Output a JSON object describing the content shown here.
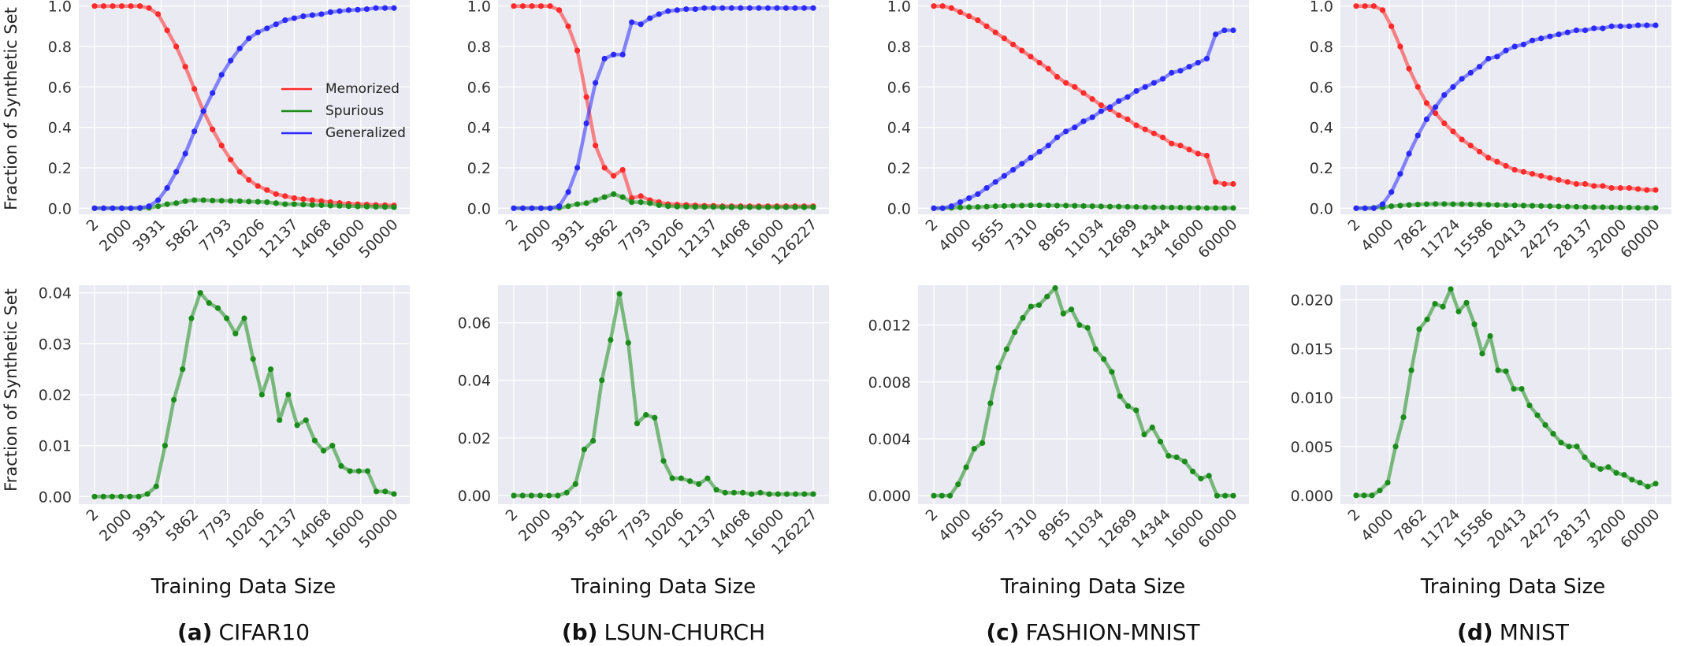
{
  "figure": {
    "y_axis_label": "Fraction of Synthetic Set",
    "x_axis_label": "Training Data Size",
    "legend": [
      {
        "name": "Memorized",
        "color": "#ff2a2a"
      },
      {
        "name": "Spurious",
        "color": "#1a8c1a"
      },
      {
        "name": "Generalized",
        "color": "#2a2aff"
      }
    ],
    "colors": {
      "memorized": "#ff2a2a",
      "spurious": "#1a8c1a",
      "generalized": "#2a2aff",
      "panel_bg": "#eaeaf2"
    }
  },
  "chart_data": [
    {
      "type": "line",
      "panel": "a",
      "row": "top",
      "caption": {
        "letter": "(a)",
        "name": "CIFAR10"
      },
      "ylim": [
        -0.03,
        1.03
      ],
      "yticks": [
        "0.0",
        "0.2",
        "0.4",
        "0.6",
        "0.8",
        "1.0"
      ],
      "xticks": [
        "2",
        "2000",
        "3931",
        "5862",
        "7793",
        "10206",
        "12137",
        "14068",
        "16000",
        "50000"
      ],
      "series": [
        {
          "name": "Memorized",
          "values": [
            1.0,
            1.0,
            1.0,
            1.0,
            1.0,
            1.0,
            0.99,
            0.96,
            0.88,
            0.8,
            0.7,
            0.59,
            0.48,
            0.39,
            0.31,
            0.24,
            0.18,
            0.14,
            0.11,
            0.09,
            0.07,
            0.06,
            0.05,
            0.045,
            0.04,
            0.035,
            0.03,
            0.026,
            0.022,
            0.02,
            0.018,
            0.016,
            0.015,
            0.014
          ]
        },
        {
          "name": "Spurious",
          "values": [
            0,
            0,
            0,
            0,
            0,
            0,
            0.002,
            0.01,
            0.02,
            0.025,
            0.035,
            0.04,
            0.04,
            0.038,
            0.037,
            0.036,
            0.035,
            0.033,
            0.032,
            0.03,
            0.025,
            0.02,
            0.02,
            0.018,
            0.016,
            0.015,
            0.013,
            0.012,
            0.01,
            0.009,
            0.008,
            0.007,
            0.006,
            0.005
          ]
        },
        {
          "name": "Generalized",
          "values": [
            0,
            0,
            0,
            0,
            0,
            0.002,
            0.01,
            0.04,
            0.1,
            0.18,
            0.27,
            0.38,
            0.48,
            0.57,
            0.66,
            0.73,
            0.79,
            0.84,
            0.87,
            0.89,
            0.91,
            0.93,
            0.94,
            0.95,
            0.955,
            0.96,
            0.97,
            0.975,
            0.98,
            0.982,
            0.985,
            0.99,
            0.99,
            0.99
          ]
        }
      ]
    },
    {
      "type": "line",
      "panel": "b",
      "row": "top",
      "caption": {
        "letter": "(b)",
        "name": "LSUN-CHURCH"
      },
      "ylim": [
        -0.03,
        1.03
      ],
      "yticks": [
        "0.0",
        "0.2",
        "0.4",
        "0.6",
        "0.8",
        "1.0"
      ],
      "xticks": [
        "2",
        "2000",
        "3931",
        "5862",
        "7793",
        "10206",
        "12137",
        "14068",
        "16000",
        "126227"
      ],
      "series": [
        {
          "name": "Memorized",
          "values": [
            1.0,
            1.0,
            1.0,
            1.0,
            1.0,
            0.98,
            0.9,
            0.78,
            0.55,
            0.31,
            0.2,
            0.16,
            0.19,
            0.05,
            0.06,
            0.04,
            0.03,
            0.02,
            0.018,
            0.016,
            0.014,
            0.012,
            0.012,
            0.01,
            0.01,
            0.01,
            0.01,
            0.01,
            0.01,
            0.01,
            0.01,
            0.01,
            0.01,
            0.01
          ]
        },
        {
          "name": "Spurious",
          "values": [
            0,
            0,
            0,
            0,
            0,
            0.002,
            0.01,
            0.02,
            0.025,
            0.04,
            0.055,
            0.07,
            0.055,
            0.03,
            0.03,
            0.025,
            0.015,
            0.01,
            0.008,
            0.007,
            0.006,
            0.006,
            0.006,
            0.005,
            0.005,
            0.005,
            0.005,
            0.005,
            0.005,
            0.005,
            0.005,
            0.005,
            0.005,
            0.005
          ]
        },
        {
          "name": "Generalized",
          "values": [
            0,
            0,
            0,
            0,
            0,
            0.01,
            0.08,
            0.2,
            0.42,
            0.62,
            0.74,
            0.76,
            0.76,
            0.92,
            0.91,
            0.94,
            0.96,
            0.975,
            0.98,
            0.985,
            0.985,
            0.99,
            0.99,
            0.99,
            0.99,
            0.99,
            0.99,
            0.99,
            0.99,
            0.99,
            0.99,
            0.99,
            0.99,
            0.99
          ]
        }
      ]
    },
    {
      "type": "line",
      "panel": "c",
      "row": "top",
      "caption": {
        "letter": "(c)",
        "name": "FASHION-MNIST"
      },
      "ylim": [
        -0.03,
        1.03
      ],
      "yticks": [
        "0.0",
        "0.2",
        "0.4",
        "0.6",
        "0.8",
        "1.0"
      ],
      "xticks": [
        "2",
        "4000",
        "5655",
        "7310",
        "8965",
        "11034",
        "12689",
        "14344",
        "16000",
        "60000"
      ],
      "series": [
        {
          "name": "Memorized",
          "values": [
            1.0,
            1.0,
            0.99,
            0.97,
            0.95,
            0.93,
            0.9,
            0.87,
            0.84,
            0.81,
            0.78,
            0.75,
            0.72,
            0.69,
            0.65,
            0.62,
            0.6,
            0.57,
            0.54,
            0.51,
            0.49,
            0.46,
            0.44,
            0.41,
            0.39,
            0.37,
            0.35,
            0.32,
            0.31,
            0.29,
            0.27,
            0.26,
            0.13,
            0.12,
            0.12
          ]
        },
        {
          "name": "Spurious",
          "values": [
            0,
            0,
            0.002,
            0.004,
            0.005,
            0.006,
            0.008,
            0.01,
            0.011,
            0.012,
            0.013,
            0.014,
            0.014,
            0.014,
            0.013,
            0.013,
            0.012,
            0.011,
            0.01,
            0.009,
            0.008,
            0.008,
            0.007,
            0.006,
            0.005,
            0.004,
            0.004,
            0.003,
            0.003,
            0.002,
            0.002,
            0.001,
            0.001,
            0.001,
            0.001
          ]
        },
        {
          "name": "Generalized",
          "values": [
            0,
            0,
            0.01,
            0.03,
            0.05,
            0.07,
            0.1,
            0.13,
            0.16,
            0.19,
            0.22,
            0.25,
            0.28,
            0.31,
            0.35,
            0.38,
            0.4,
            0.43,
            0.45,
            0.48,
            0.5,
            0.53,
            0.55,
            0.58,
            0.6,
            0.62,
            0.64,
            0.67,
            0.68,
            0.7,
            0.72,
            0.74,
            0.86,
            0.88,
            0.88
          ]
        }
      ]
    },
    {
      "type": "line",
      "panel": "d",
      "row": "top",
      "caption": {
        "letter": "(d)",
        "name": "MNIST"
      },
      "ylim": [
        -0.03,
        1.03
      ],
      "yticks": [
        "0.0",
        "0.2",
        "0.4",
        "0.6",
        "0.8",
        "1.0"
      ],
      "xticks": [
        "2",
        "4000",
        "7862",
        "11724",
        "15586",
        "20413",
        "24275",
        "28137",
        "32000",
        "60000"
      ],
      "series": [
        {
          "name": "Memorized",
          "values": [
            1.0,
            1.0,
            1.0,
            0.98,
            0.9,
            0.8,
            0.69,
            0.6,
            0.52,
            0.47,
            0.42,
            0.38,
            0.34,
            0.31,
            0.28,
            0.25,
            0.23,
            0.21,
            0.19,
            0.18,
            0.17,
            0.16,
            0.15,
            0.14,
            0.13,
            0.12,
            0.12,
            0.11,
            0.11,
            0.1,
            0.1,
            0.1,
            0.095,
            0.09,
            0.09
          ]
        },
        {
          "name": "Spurious",
          "values": [
            0,
            0,
            0.002,
            0.005,
            0.01,
            0.013,
            0.016,
            0.018,
            0.02,
            0.021,
            0.021,
            0.02,
            0.02,
            0.019,
            0.018,
            0.017,
            0.016,
            0.015,
            0.014,
            0.013,
            0.012,
            0.011,
            0.01,
            0.009,
            0.008,
            0.007,
            0.006,
            0.005,
            0.005,
            0.004,
            0.003,
            0.003,
            0.002,
            0.002,
            0.002
          ]
        },
        {
          "name": "Generalized",
          "values": [
            0,
            0,
            0,
            0.02,
            0.08,
            0.17,
            0.27,
            0.36,
            0.44,
            0.5,
            0.56,
            0.6,
            0.64,
            0.67,
            0.7,
            0.74,
            0.75,
            0.78,
            0.8,
            0.81,
            0.83,
            0.84,
            0.85,
            0.86,
            0.87,
            0.88,
            0.88,
            0.89,
            0.89,
            0.9,
            0.9,
            0.9,
            0.905,
            0.905,
            0.905
          ]
        }
      ]
    },
    {
      "type": "line",
      "panel": "a",
      "row": "bottom",
      "ylim": [
        -0.0015,
        0.0415
      ],
      "yticks": [
        "0.00",
        "0.01",
        "0.02",
        "0.03",
        "0.04"
      ],
      "xticks": [
        "2",
        "2000",
        "3931",
        "5862",
        "7793",
        "10206",
        "12137",
        "14068",
        "16000",
        "50000"
      ],
      "series": [
        {
          "name": "Spurious",
          "values": [
            0,
            0,
            0,
            0,
            0,
            0,
            0.0005,
            0.002,
            0.01,
            0.019,
            0.025,
            0.035,
            0.04,
            0.038,
            0.037,
            0.035,
            0.032,
            0.035,
            0.027,
            0.02,
            0.025,
            0.015,
            0.02,
            0.014,
            0.015,
            0.011,
            0.009,
            0.01,
            0.006,
            0.005,
            0.005,
            0.005,
            0.001,
            0.001,
            0.0005
          ]
        }
      ]
    },
    {
      "type": "line",
      "panel": "b",
      "row": "bottom",
      "ylim": [
        -0.003,
        0.073
      ],
      "yticks": [
        "0.00",
        "0.02",
        "0.04",
        "0.06"
      ],
      "xticks": [
        "2",
        "2000",
        "3931",
        "5862",
        "7793",
        "10206",
        "12137",
        "14068",
        "16000",
        "126227"
      ],
      "series": [
        {
          "name": "Spurious",
          "values": [
            0,
            0,
            0,
            0,
            0,
            0,
            0.001,
            0.004,
            0.016,
            0.019,
            0.04,
            0.054,
            0.07,
            0.053,
            0.025,
            0.028,
            0.027,
            0.012,
            0.006,
            0.006,
            0.005,
            0.004,
            0.006,
            0.002,
            0.001,
            0.001,
            0.001,
            0.0005,
            0.001,
            0.0005,
            0.0005,
            0.0005,
            0.0005,
            0.0005,
            0.0005
          ]
        }
      ]
    },
    {
      "type": "line",
      "panel": "c",
      "row": "bottom",
      "ylim": [
        -0.0006,
        0.0148
      ],
      "yticks": [
        "0.000",
        "0.004",
        "0.008",
        "0.012"
      ],
      "xticks": [
        "2",
        "4000",
        "5655",
        "7310",
        "8965",
        "11034",
        "12689",
        "14344",
        "16000",
        "60000"
      ],
      "series": [
        {
          "name": "Spurious",
          "values": [
            0,
            0,
            0,
            0.0008,
            0.002,
            0.0033,
            0.0037,
            0.0065,
            0.009,
            0.0103,
            0.0115,
            0.0125,
            0.0133,
            0.0134,
            0.014,
            0.0146,
            0.0128,
            0.0131,
            0.012,
            0.0118,
            0.0103,
            0.0096,
            0.0087,
            0.007,
            0.0063,
            0.006,
            0.0043,
            0.0048,
            0.0038,
            0.0028,
            0.0027,
            0.0024,
            0.0017,
            0.0012,
            0.0014,
            0,
            0,
            0
          ]
        }
      ]
    },
    {
      "type": "line",
      "panel": "d",
      "row": "bottom",
      "ylim": [
        -0.0009,
        0.0215
      ],
      "yticks": [
        "0.000",
        "0.005",
        "0.010",
        "0.015",
        "0.020"
      ],
      "xticks": [
        "2",
        "4000",
        "7862",
        "11724",
        "15586",
        "20413",
        "24275",
        "28137",
        "32000",
        "60000"
      ],
      "series": [
        {
          "name": "Spurious",
          "values": [
            0,
            0,
            0,
            0.0005,
            0.0013,
            0.005,
            0.008,
            0.0128,
            0.017,
            0.018,
            0.0196,
            0.0193,
            0.0211,
            0.0188,
            0.0197,
            0.0175,
            0.0145,
            0.0163,
            0.0128,
            0.0127,
            0.0109,
            0.0109,
            0.0092,
            0.0082,
            0.0072,
            0.0063,
            0.0054,
            0.005,
            0.005,
            0.0039,
            0.0031,
            0.0027,
            0.0029,
            0.0023,
            0.0021,
            0.0016,
            0.0013,
            0.0009,
            0.0012
          ]
        }
      ]
    }
  ]
}
